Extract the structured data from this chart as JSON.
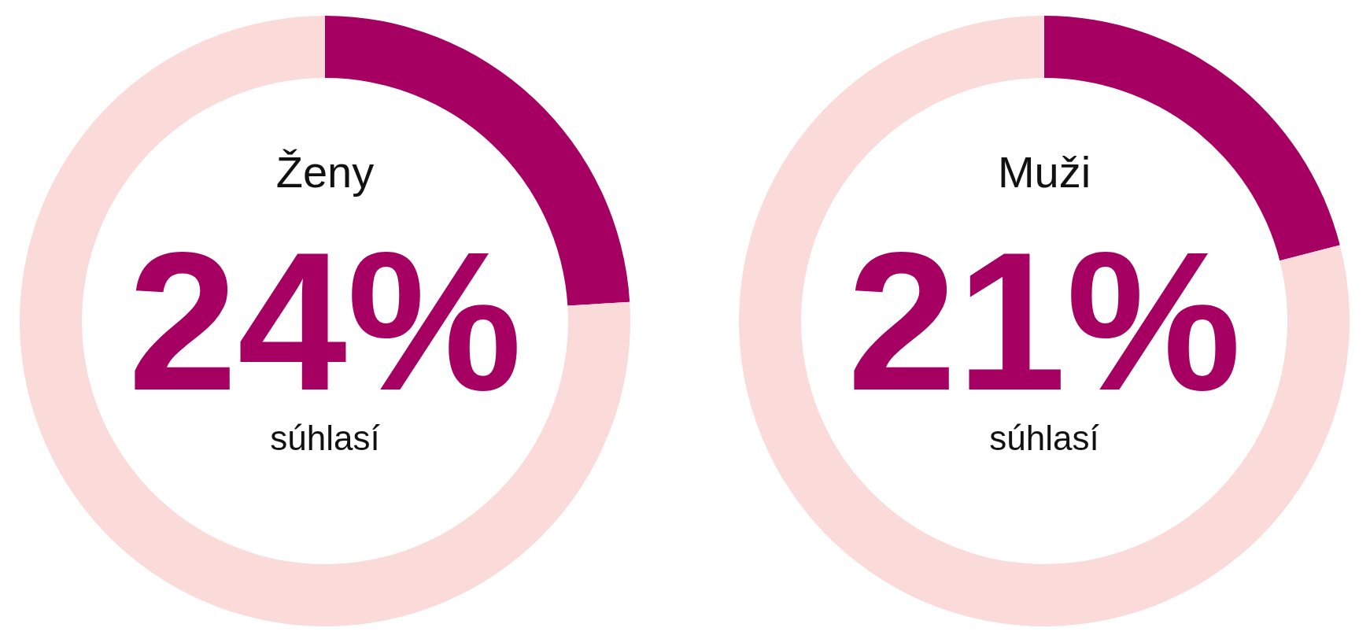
{
  "chart_data": [
    {
      "type": "donut",
      "title": "Ženy",
      "subtitle": "súhlasí",
      "categories": [
        null,
        null
      ],
      "values": [
        24,
        76
      ],
      "colors": [
        "#a50062",
        "#fbdada"
      ],
      "annotations": [
        "24%"
      ]
    },
    {
      "type": "donut",
      "title": "Muži",
      "subtitle": "súhlasí",
      "categories": [
        null,
        null
      ],
      "values": [
        21,
        79
      ],
      "colors": [
        "#a50062",
        "#fbdada"
      ],
      "annotations": [
        "21%"
      ]
    }
  ]
}
